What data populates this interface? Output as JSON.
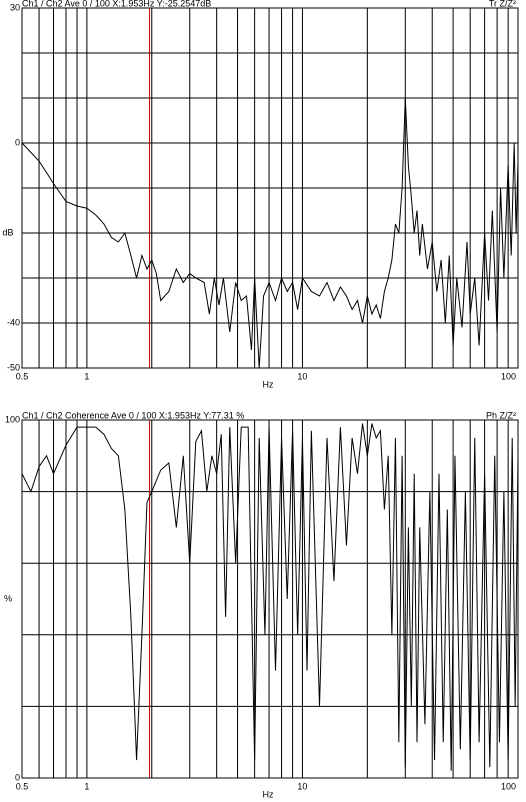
{
  "chart_data": [
    {
      "type": "line",
      "header_left": "Ch1 / Ch2  Ave 0 / 100  X:1.953Hz  Y:-25.2547dB",
      "header_right": "Tr Z/Z²",
      "xlabel": "Hz",
      "ylabel": "dB",
      "xscale": "log",
      "grid": true,
      "xlim": [
        0.5,
        100
      ],
      "ylim": [
        -50,
        30
      ],
      "xticks": [
        0.5,
        {
          "value": 0.6,
          "label": null
        },
        {
          "value": 0.7,
          "label": null
        },
        {
          "value": 0.8,
          "label": null
        },
        {
          "value": 0.9,
          "label": null
        },
        1,
        {
          "value": 2,
          "label": null
        },
        {
          "value": 3,
          "label": null
        },
        {
          "value": 4,
          "label": null
        },
        {
          "value": 5,
          "label": null
        },
        {
          "value": 6,
          "label": null
        },
        {
          "value": 7,
          "label": null
        },
        {
          "value": 8,
          "label": null
        },
        {
          "value": 9,
          "label": null
        },
        10,
        {
          "value": 20,
          "label": null
        },
        {
          "value": 30,
          "label": null
        },
        {
          "value": 40,
          "label": null
        },
        {
          "value": 50,
          "label": null
        },
        {
          "value": 60,
          "label": null
        },
        {
          "value": 70,
          "label": null
        },
        {
          "value": 80,
          "label": null
        },
        {
          "value": 90,
          "label": null
        },
        100
      ],
      "yticks": [
        30,
        {
          "value": 20,
          "label": null
        },
        {
          "value": 10,
          "label": null
        },
        0,
        {
          "value": -10,
          "label": null
        },
        {
          "value": -20,
          "label": null
        },
        {
          "value": -30,
          "label": null
        },
        -40,
        -50
      ],
      "cursor_x": 1.953,
      "cursor_color": "#c00000",
      "series": [
        {
          "color": "#000000",
          "x": [
            0.5,
            0.6,
            0.7,
            0.8,
            0.9,
            1.0,
            1.1,
            1.2,
            1.3,
            1.4,
            1.5,
            1.6,
            1.7,
            1.8,
            1.9,
            2.0,
            2.1,
            2.2,
            2.4,
            2.6,
            2.8,
            3.0,
            3.2,
            3.5,
            3.7,
            3.9,
            4.1,
            4.3,
            4.6,
            4.9,
            5.2,
            5.5,
            5.8,
            6.0,
            6.3,
            6.6,
            7,
            7.5,
            8,
            8.5,
            9,
            9.5,
            10,
            11,
            12,
            13,
            14,
            15,
            16,
            17,
            18,
            19,
            20,
            21,
            22,
            23,
            24,
            25,
            26,
            27,
            28,
            29,
            30,
            31,
            32,
            33,
            34,
            35,
            36,
            38,
            40,
            42,
            44,
            46,
            48,
            50,
            52,
            55,
            58,
            60,
            63,
            66,
            70,
            73,
            76,
            80,
            83,
            86,
            90,
            93,
            96,
            98,
            100
          ],
          "values": [
            0,
            -4,
            -9,
            -13,
            -14,
            -14.5,
            -16,
            -18,
            -21,
            -22,
            -20,
            -25,
            -30,
            -25,
            -28,
            -26,
            -29,
            -35,
            -33,
            -28,
            -31,
            -29,
            -30,
            -31,
            -38,
            -30,
            -36,
            -30,
            -42,
            -31,
            -35,
            -34,
            -46,
            -30,
            -50,
            -34,
            -31,
            -35,
            -30,
            -33,
            -31,
            -37,
            -30,
            -33,
            -34,
            -31,
            -35,
            -32,
            -34,
            -37,
            -35,
            -40,
            -34,
            -38,
            -36,
            -39,
            -33,
            -30,
            -26,
            -18,
            -20,
            -10,
            10,
            -5,
            -12,
            -20,
            -15,
            -25,
            -18,
            -28,
            -22,
            -33,
            -26,
            -40,
            -25,
            -45,
            -30,
            -41,
            -22,
            -38,
            -30,
            -45,
            -20,
            -35,
            -15,
            -42,
            -10,
            -30,
            -5,
            -25,
            0,
            -20,
            -4
          ]
        }
      ]
    },
    {
      "type": "line",
      "header_left": "Ch1 / Ch2  Coherence Ave 0 / 100  X:1.953Hz  Y:77.31 %",
      "header_right": "Ph Z/Z²",
      "xlabel": "Hz",
      "ylabel": "%",
      "xscale": "log",
      "grid": true,
      "xlim": [
        0.5,
        100
      ],
      "ylim": [
        0,
        100
      ],
      "xticks": [
        0.5,
        {
          "value": 0.6,
          "label": null
        },
        {
          "value": 0.7,
          "label": null
        },
        {
          "value": 0.8,
          "label": null
        },
        {
          "value": 0.9,
          "label": null
        },
        1,
        {
          "value": 2,
          "label": null
        },
        {
          "value": 3,
          "label": null
        },
        {
          "value": 4,
          "label": null
        },
        {
          "value": 5,
          "label": null
        },
        {
          "value": 6,
          "label": null
        },
        {
          "value": 7,
          "label": null
        },
        {
          "value": 8,
          "label": null
        },
        {
          "value": 9,
          "label": null
        },
        10,
        {
          "value": 20,
          "label": null
        },
        {
          "value": 30,
          "label": null
        },
        {
          "value": 40,
          "label": null
        },
        {
          "value": 50,
          "label": null
        },
        {
          "value": 60,
          "label": null
        },
        {
          "value": 70,
          "label": null
        },
        {
          "value": 80,
          "label": null
        },
        {
          "value": 90,
          "label": null
        },
        100
      ],
      "yticks": [
        100,
        {
          "value": 80,
          "label": null
        },
        {
          "value": 60,
          "label": null
        },
        {
          "value": 40,
          "label": null
        },
        {
          "value": 20,
          "label": null
        },
        0
      ],
      "cursor_x": 1.953,
      "cursor_color": "#c00000",
      "series": [
        {
          "color": "#000000",
          "x": [
            0.5,
            0.55,
            0.6,
            0.65,
            0.7,
            0.8,
            0.9,
            1.0,
            1.1,
            1.2,
            1.3,
            1.4,
            1.5,
            1.6,
            1.7,
            1.8,
            1.9,
            2.0,
            2.2,
            2.4,
            2.6,
            2.8,
            3.0,
            3.2,
            3.4,
            3.6,
            3.8,
            4.0,
            4.2,
            4.4,
            4.6,
            4.9,
            5.2,
            5.6,
            6.0,
            6.3,
            6.7,
            7,
            7.5,
            8,
            8.5,
            9,
            9.5,
            10,
            10.5,
            11,
            12,
            13,
            14,
            15,
            16,
            17,
            18,
            19,
            20,
            21,
            22,
            23,
            24,
            25,
            26,
            27,
            28,
            29,
            30,
            31,
            32,
            33,
            34,
            35,
            37,
            39,
            41,
            43,
            45,
            47,
            49,
            51,
            54,
            57,
            60,
            63,
            66,
            70,
            74,
            78,
            82,
            86,
            90,
            94,
            97,
            100
          ],
          "values": [
            85,
            80,
            87,
            90,
            85,
            93,
            98,
            98,
            98,
            96,
            92,
            90,
            75,
            45,
            5,
            40,
            77,
            80,
            86,
            88,
            70,
            90,
            60,
            94,
            97,
            80,
            90,
            85,
            96,
            45,
            98,
            60,
            98,
            98,
            5,
            95,
            40,
            98,
            30,
            95,
            50,
            97,
            40,
            95,
            30,
            97,
            20,
            95,
            55,
            98,
            65,
            95,
            85,
            99,
            90,
            99,
            95,
            97,
            75,
            90,
            40,
            95,
            10,
            90,
            3,
            70,
            20,
            85,
            10,
            70,
            15,
            80,
            5,
            85,
            10,
            75,
            2,
            90,
            8,
            80,
            5,
            95,
            10,
            85,
            3,
            90,
            10,
            80,
            5,
            95,
            20,
            90
          ]
        }
      ]
    }
  ]
}
